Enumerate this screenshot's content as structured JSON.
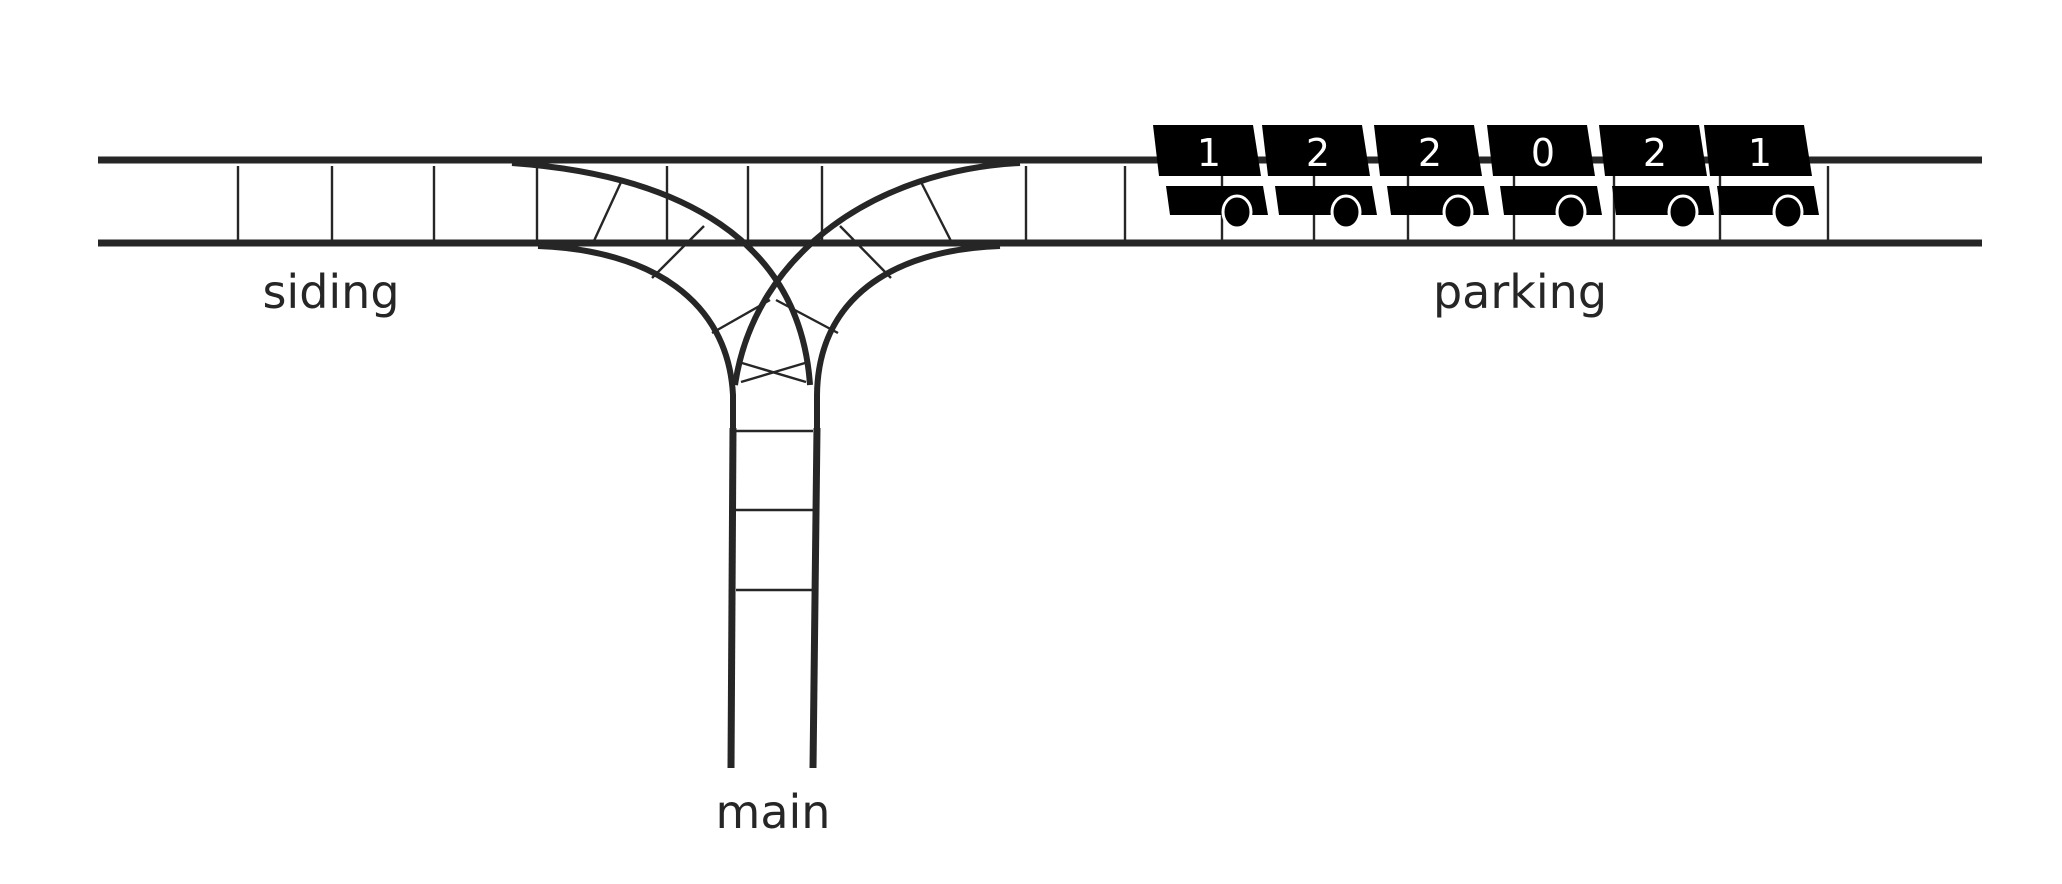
{
  "labels": {
    "siding": "siding",
    "parking": "parking",
    "main": "main"
  },
  "cars": [
    {
      "number": "1"
    },
    {
      "number": "2"
    },
    {
      "number": "2"
    },
    {
      "number": "0"
    },
    {
      "number": "2"
    },
    {
      "number": "1"
    }
  ],
  "colors": {
    "track": "#262626",
    "car": "#000000",
    "car_text": "#ffffff",
    "background": "#ffffff"
  }
}
